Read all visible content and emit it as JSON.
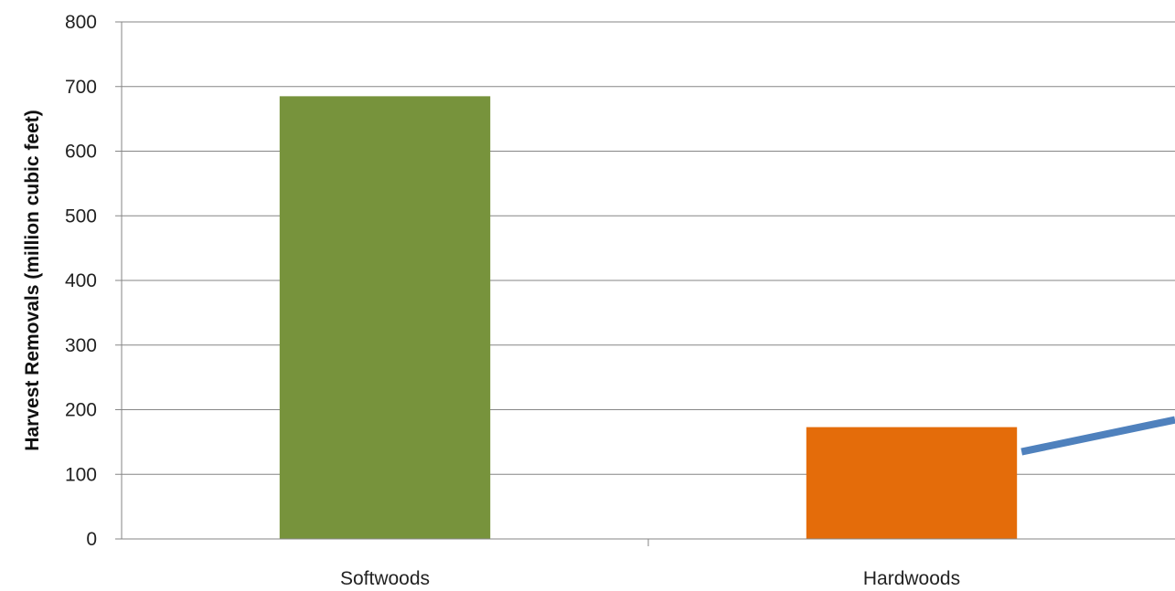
{
  "chart_data": {
    "type": "bar",
    "categories": [
      "Softwoods",
      "Hardwoods"
    ],
    "values": [
      685,
      173
    ],
    "colors": [
      "#77933c",
      "#e46c0a"
    ],
    "title": "",
    "xlabel": "",
    "ylabel": "Harvest Removals (million cubic feet)",
    "ylim": [
      0,
      800
    ],
    "yticks": [
      0,
      100,
      200,
      300,
      400,
      500,
      600,
      700,
      800
    ],
    "grid": true,
    "annotation_arrow_color": "#4f81bd"
  }
}
